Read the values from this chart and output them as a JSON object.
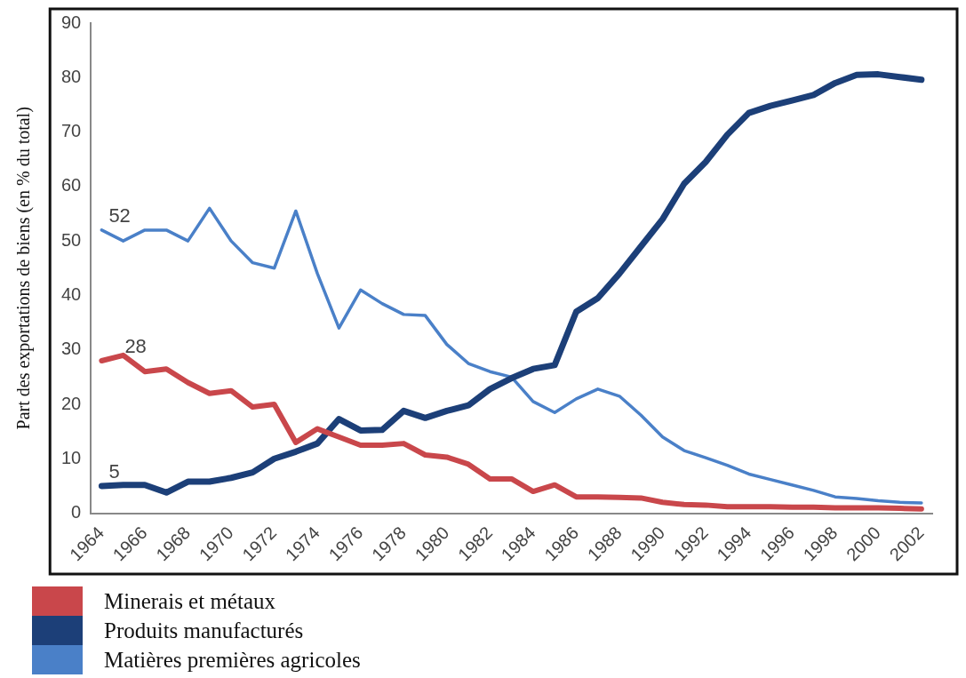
{
  "chart_data": {
    "type": "line",
    "ylabel": "Part des exportations de biens (en % du total)",
    "categories": [
      "1964",
      null,
      "1966",
      null,
      "1968",
      null,
      "1970",
      null,
      "1972",
      null,
      "1974",
      null,
      "1976",
      null,
      "1978",
      null,
      "1980",
      null,
      "1982",
      null,
      "1984",
      null,
      "1986",
      null,
      "1988",
      null,
      "1990",
      null,
      "1992",
      null,
      "1994",
      null,
      "1996",
      null,
      "1998",
      null,
      "2000",
      null,
      "2002"
    ],
    "series": [
      {
        "name": "Minerais et métaux",
        "color": "#c9474b",
        "values": [
          28,
          29,
          26,
          26.5,
          24,
          22,
          22.5,
          19.5,
          20,
          13,
          15.5,
          14,
          12.5,
          12.5,
          12.8,
          10.7,
          10.3,
          9,
          6.3,
          6.3,
          4,
          5.2,
          3,
          3,
          2.9,
          2.8,
          2,
          1.6,
          1.5,
          1.2,
          1.2,
          1.2,
          1.1,
          1.1,
          1,
          1,
          1,
          0.9,
          0.8
        ]
      },
      {
        "name": "Produits manufacturés",
        "color": "#1c3f78",
        "values": [
          5,
          5.2,
          5.2,
          3.8,
          5.8,
          5.8,
          6.5,
          7.5,
          10,
          11.3,
          12.8,
          17.3,
          15.2,
          15.3,
          18.8,
          17.5,
          18.8,
          19.8,
          22.8,
          24.8,
          26.5,
          27.2,
          37,
          39.5,
          44,
          49,
          54,
          60.5,
          64.5,
          69.5,
          73.5,
          74.8,
          75.8,
          76.8,
          79,
          80.5,
          80.6,
          80.1,
          79.6
        ]
      },
      {
        "name": "Matières premières agricoles",
        "color": "#4a80c8",
        "values": [
          52,
          50,
          52,
          52,
          50,
          56,
          50,
          46,
          45,
          55.5,
          44,
          34,
          41,
          38.5,
          36.5,
          36.3,
          31,
          27.5,
          26,
          25,
          20.5,
          18.5,
          21,
          22.8,
          21.5,
          18,
          14,
          11.5,
          10.2,
          8.8,
          7.2,
          6.2,
          5.2,
          4.2,
          3,
          2.7,
          2.3,
          2,
          1.9
        ]
      }
    ],
    "ylim": [
      0,
      90
    ],
    "yticks": [
      0,
      10,
      20,
      30,
      40,
      50,
      60,
      70,
      80,
      90
    ],
    "annotations": [
      {
        "text": "52",
        "x": "1964",
        "y": 52
      },
      {
        "text": "28",
        "x": "1964",
        "y": 28
      },
      {
        "text": "5",
        "x": "1964",
        "y": 5
      }
    ],
    "grid": false,
    "legend": "bottom left",
    "marker": "none",
    "line_style": "solid"
  }
}
